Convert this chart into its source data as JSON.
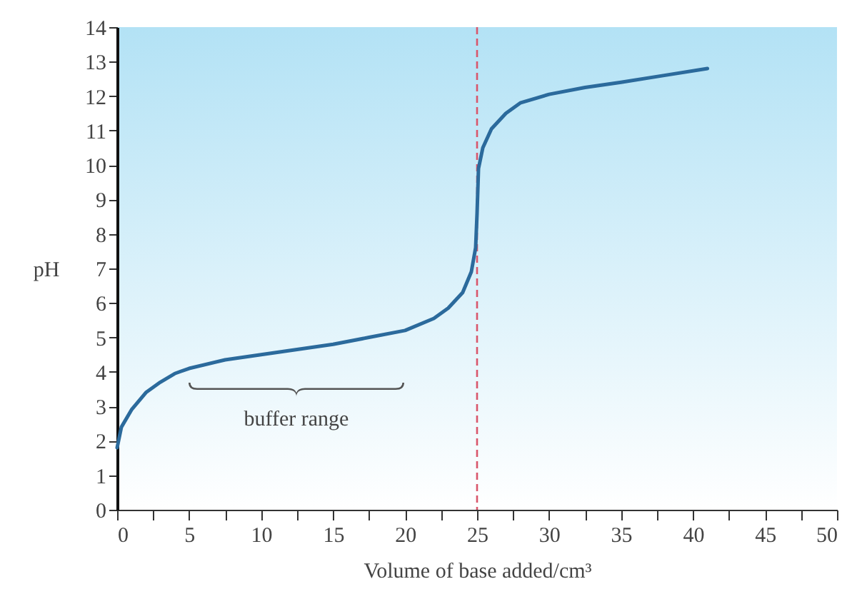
{
  "chart_data": {
    "type": "line",
    "xlabel": "Volume of base added/cm³",
    "ylabel": "pH",
    "x": [
      0,
      0.3,
      1,
      2,
      3,
      4,
      5,
      7.5,
      10,
      12.5,
      15,
      17.5,
      20,
      22,
      23,
      24,
      24.6,
      24.9,
      25,
      25.1,
      25.4,
      26,
      27,
      28,
      30,
      32.5,
      35,
      38,
      41
    ],
    "series": [
      {
        "color": "#2b6a9c",
        "values": [
          1.8,
          2.4,
          2.9,
          3.4,
          3.7,
          3.95,
          4.1,
          4.35,
          4.5,
          4.65,
          4.8,
          5.0,
          5.2,
          5.55,
          5.85,
          6.3,
          6.9,
          7.6,
          8.6,
          9.9,
          10.5,
          11.05,
          11.5,
          11.8,
          12.05,
          12.25,
          12.4,
          12.6,
          12.8
        ]
      }
    ],
    "xlim": [
      0,
      50
    ],
    "ylim": [
      0,
      14
    ],
    "xticks": [
      0,
      {
        "value": 2.5,
        "label": null
      },
      5,
      {
        "value": 7.5,
        "label": null
      },
      10,
      {
        "value": 12.5,
        "label": null
      },
      15,
      {
        "value": 17.5,
        "label": null
      },
      20,
      {
        "value": 22.5,
        "label": null
      },
      25,
      {
        "value": 27.5,
        "label": null
      },
      30,
      {
        "value": 32.5,
        "label": null
      },
      35,
      {
        "value": 37.5,
        "label": null
      },
      40,
      {
        "value": 42.5,
        "label": null
      },
      45,
      {
        "value": 47.5,
        "label": null
      },
      50
    ],
    "yticks": [
      0,
      1,
      2,
      3,
      4,
      5,
      6,
      7,
      8,
      9,
      10,
      11,
      12,
      13,
      14
    ],
    "grid": false,
    "marker": "none",
    "line_style": "solid",
    "ref_lines": [
      {
        "axis": "x",
        "value": 25,
        "color": "#d9566b",
        "line_style": "dashed"
      }
    ],
    "annotations": [
      "buffer range"
    ]
  }
}
